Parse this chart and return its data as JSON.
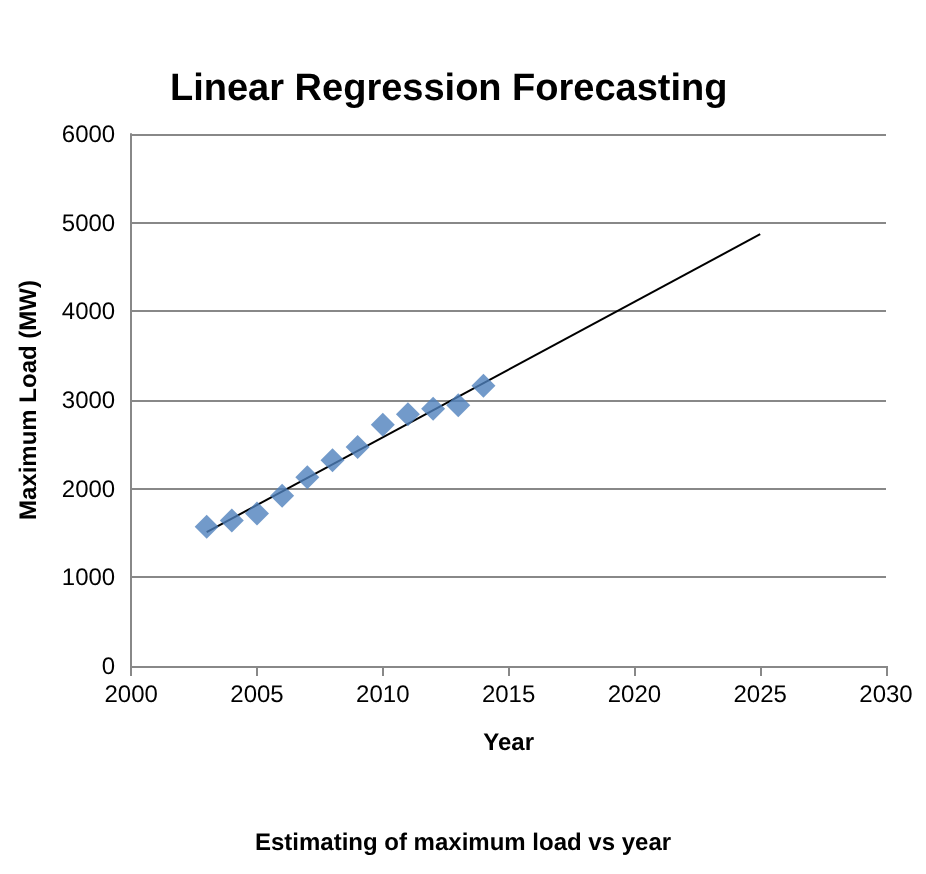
{
  "chart_data": {
    "type": "scatter",
    "title": "Linear Regression Forecasting",
    "xlabel": "Year",
    "ylabel": "Maximum Load (MW)",
    "annotations": [
      "Estimating of maximum load vs year"
    ],
    "x": [
      2003,
      2004,
      2005,
      2006,
      2007,
      2008,
      2009,
      2010,
      2011,
      2012,
      2013,
      2014
    ],
    "series": [
      {
        "color": "#4f81bd",
        "values": [
          1570,
          1640,
          1720,
          1920,
          2130,
          2320,
          2470,
          2720,
          2840,
          2900,
          2940,
          3160
        ]
      },
      {
        "type": "line",
        "marker": "none",
        "color": "#000000",
        "x": [
          2003,
          2025
        ],
        "values": [
          1510,
          4870
        ]
      }
    ],
    "xlim": [
      2000,
      2030
    ],
    "xticks": [
      2000,
      2005,
      2010,
      2015,
      2020,
      2025,
      2030
    ],
    "ylim": [
      0,
      6000
    ],
    "yticks": [
      0,
      1000,
      2000,
      3000,
      4000,
      5000,
      6000
    ],
    "grid": "y",
    "marker": "diamond"
  }
}
